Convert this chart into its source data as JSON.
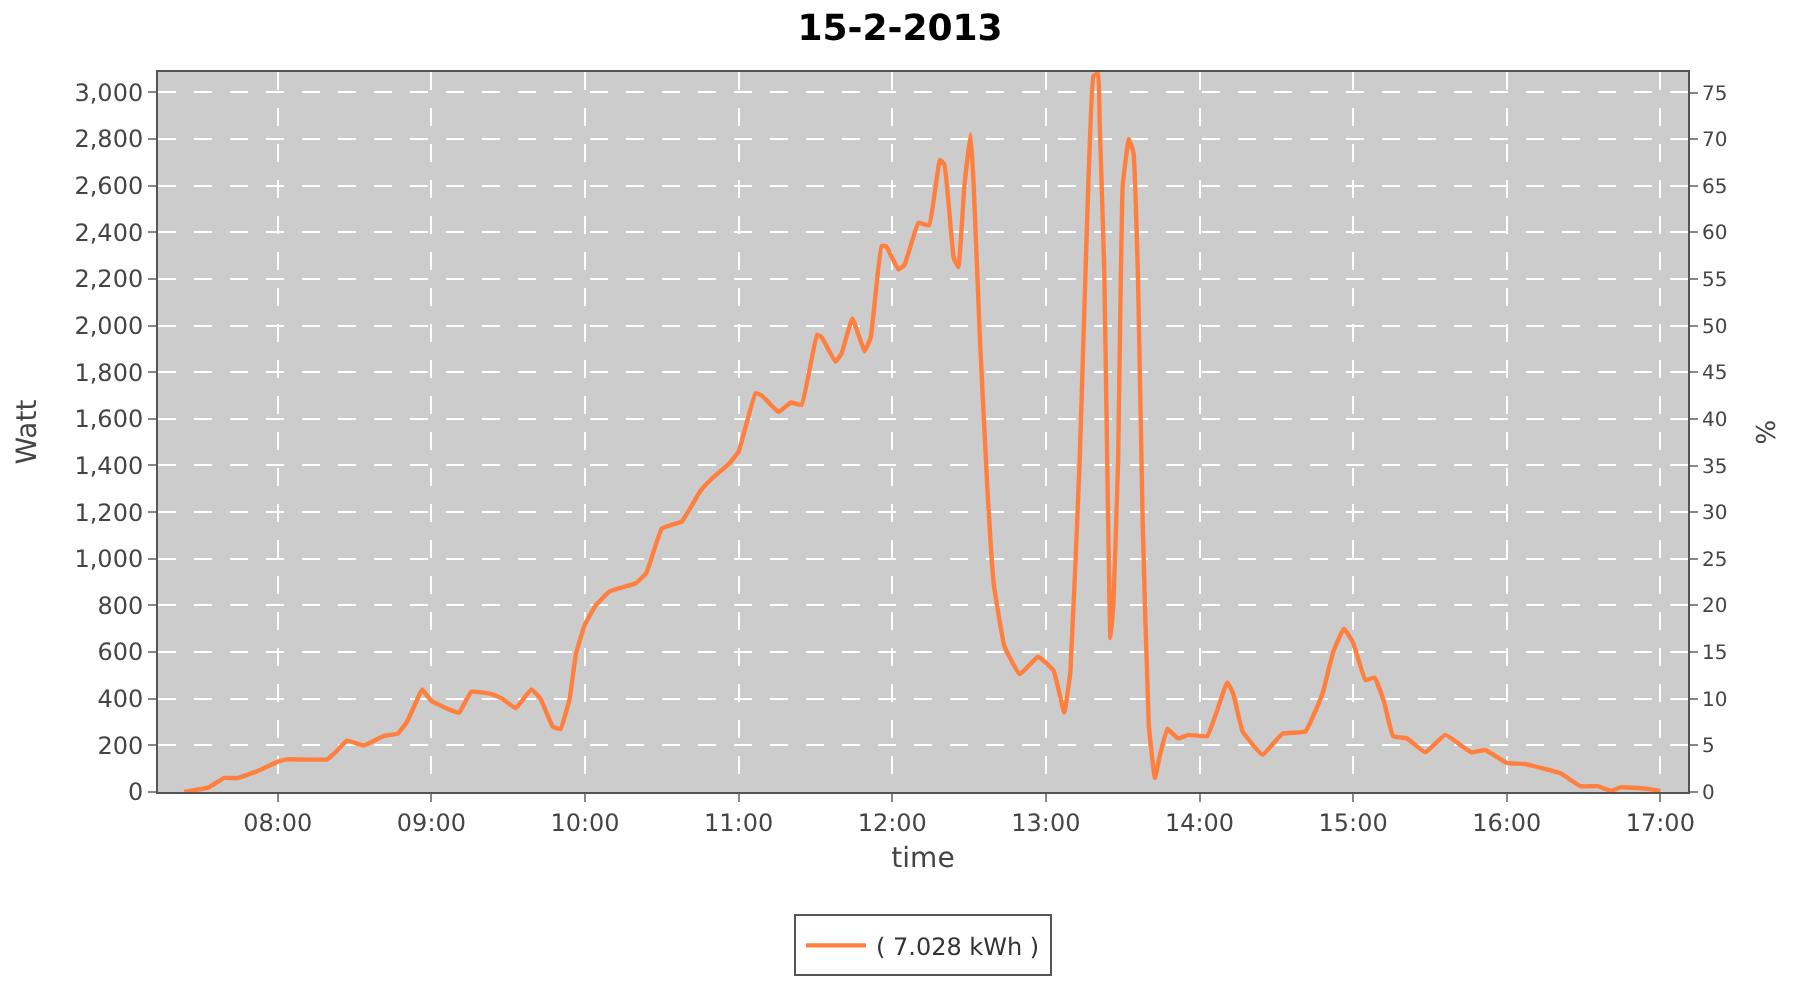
{
  "chart_data": {
    "type": "line",
    "title": "15-2-2013",
    "xlabel": "time",
    "ylabel": "Watt",
    "y2label": "%",
    "xlim": [
      7.22,
      17.18
    ],
    "xticks": [
      {
        "value": 8,
        "label": "08:00"
      },
      {
        "value": 9,
        "label": "09:00"
      },
      {
        "value": 10,
        "label": "10:00"
      },
      {
        "value": 11,
        "label": "11:00"
      },
      {
        "value": 12,
        "label": "12:00"
      },
      {
        "value": 13,
        "label": "13:00"
      },
      {
        "value": 14,
        "label": "14:00"
      },
      {
        "value": 15,
        "label": "15:00"
      },
      {
        "value": 16,
        "label": "16:00"
      },
      {
        "value": 17,
        "label": "17:00"
      }
    ],
    "ylim": [
      0,
      3087
    ],
    "yticks": [
      0,
      200,
      400,
      600,
      800,
      {
        "value": 1000,
        "label": "1,000"
      },
      {
        "value": 1200,
        "label": "1,200"
      },
      {
        "value": 1400,
        "label": "1,400"
      },
      {
        "value": 1600,
        "label": "1,600"
      },
      {
        "value": 1800,
        "label": "1,800"
      },
      {
        "value": 2000,
        "label": "2,000"
      },
      {
        "value": 2200,
        "label": "2,200"
      },
      {
        "value": 2400,
        "label": "2,400"
      },
      {
        "value": 2600,
        "label": "2,600"
      },
      {
        "value": 2800,
        "label": "2,800"
      },
      {
        "value": 3000,
        "label": "3,000"
      }
    ],
    "y2lim": [
      0,
      77.2
    ],
    "y2ticks": [
      0,
      5,
      10,
      15,
      20,
      25,
      30,
      35,
      40,
      45,
      50,
      55,
      60,
      65,
      70,
      75
    ],
    "grid": true,
    "legend": "bottom",
    "marker": "none",
    "line_style": "solid",
    "series": [
      {
        "name": "( 7.028 kWh )",
        "color": "#ff7f3f",
        "x": [
          7.39,
          7.55,
          7.65,
          7.74,
          7.87,
          8.0,
          8.06,
          8.32,
          8.39,
          8.45,
          8.56,
          8.69,
          8.78,
          8.84,
          8.91,
          8.94,
          9.0,
          9.13,
          9.18,
          9.26,
          9.39,
          9.46,
          9.55,
          9.65,
          9.71,
          9.79,
          9.84,
          9.9,
          9.94,
          10.0,
          10.07,
          10.16,
          10.33,
          10.4,
          10.5,
          10.63,
          10.75,
          10.82,
          10.94,
          11.0,
          11.11,
          11.15,
          11.26,
          11.34,
          11.41,
          11.51,
          11.54,
          11.63,
          11.67,
          11.74,
          11.82,
          11.86,
          11.93,
          11.96,
          12.04,
          12.08,
          12.17,
          12.24,
          12.31,
          12.34,
          12.4,
          12.43,
          12.47,
          12.51,
          12.53,
          12.57,
          12.62,
          12.66,
          12.73,
          12.83,
          12.95,
          13.05,
          13.12,
          13.16,
          13.22,
          13.27,
          13.31,
          13.34,
          13.35,
          13.38,
          13.4,
          13.42,
          13.44,
          13.47,
          13.5,
          13.54,
          13.57,
          13.6,
          13.63,
          13.67,
          13.71,
          13.74,
          13.79,
          13.86,
          13.93,
          14.05,
          14.11,
          14.18,
          14.22,
          14.28,
          14.41,
          14.54,
          14.69,
          14.8,
          14.87,
          14.94,
          15.0,
          15.08,
          15.14,
          15.2,
          15.26,
          15.35,
          15.47,
          15.6,
          15.77,
          15.86,
          16.0,
          16.12,
          16.35,
          16.48,
          16.59,
          16.68,
          16.74,
          16.9,
          17.0
        ],
        "values": [
          0,
          20,
          60,
          60,
          90,
          130,
          140,
          140,
          180,
          220,
          200,
          240,
          250,
          300,
          400,
          440,
          390,
          350,
          340,
          430,
          420,
          400,
          360,
          440,
          400,
          280,
          270,
          400,
          590,
          720,
          800,
          860,
          895,
          940,
          1130,
          1160,
          1290,
          1340,
          1410,
          1460,
          1710,
          1700,
          1630,
          1670,
          1660,
          1960,
          1950,
          1845,
          1880,
          2030,
          1890,
          1950,
          2340,
          2340,
          2240,
          2260,
          2440,
          2430,
          2710,
          2690,
          2290,
          2250,
          2600,
          2820,
          2600,
          1950,
          1290,
          895,
          625,
          505,
          580,
          520,
          340,
          520,
          1420,
          2480,
          3070,
          3080,
          2870,
          2240,
          1390,
          660,
          815,
          1420,
          2600,
          2800,
          2740,
          2190,
          1160,
          285,
          60,
          150,
          270,
          230,
          245,
          240,
          340,
          470,
          420,
          260,
          160,
          250,
          260,
          420,
          600,
          700,
          640,
          480,
          490,
          390,
          240,
          230,
          170,
          245,
          170,
          180,
          125,
          120,
          80,
          25,
          25,
          5,
          20,
          15,
          5
        ]
      }
    ]
  }
}
